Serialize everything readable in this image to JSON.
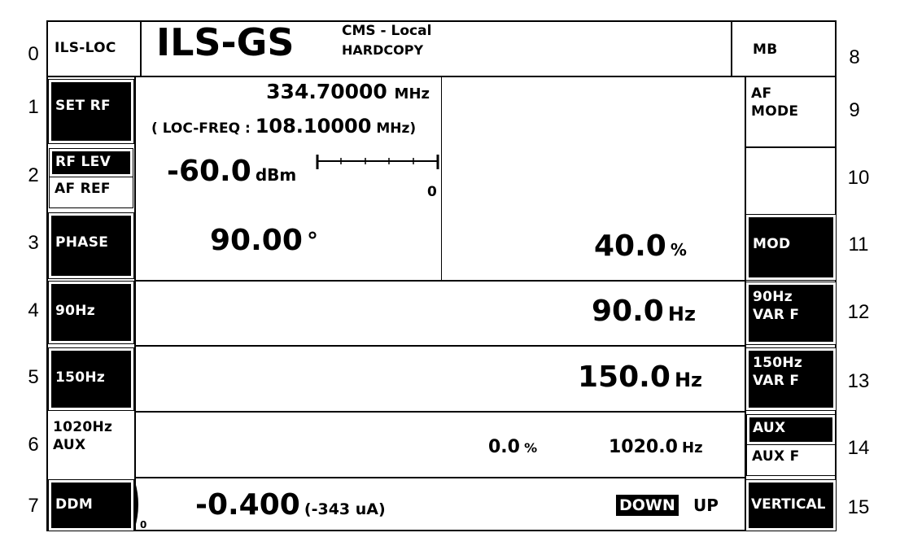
{
  "row_numbers_left": [
    "0",
    "1",
    "2",
    "3",
    "4",
    "5",
    "6",
    "7"
  ],
  "row_numbers_right": [
    "8",
    "9",
    "10",
    "11",
    "12",
    "13",
    "14",
    "15"
  ],
  "header": {
    "mode": "ILS-LOC",
    "title": "ILS-GS",
    "status_line1": "CMS - Local",
    "status_line2": "HARDCOPY",
    "right_key": "MB"
  },
  "left_keys": {
    "set_rf": "SET RF",
    "rf_lev": "RF LEV",
    "af_ref": "AF REF",
    "phase": "PHASE",
    "hz90": "90Hz",
    "hz150": "150Hz",
    "hz1020": "1020Hz",
    "aux": "AUX",
    "ddm": "DDM"
  },
  "right_keys": {
    "af_mode_1": "AF",
    "af_mode_2": "MODE",
    "mod": "MOD",
    "var90_1": "90Hz",
    "var90_2": "VAR F",
    "var150_1": "150Hz",
    "var150_2": "VAR F",
    "aux": "AUX",
    "aux_f": "AUX F",
    "vertical": "VERTICAL"
  },
  "rf": {
    "freq": "334.70000",
    "freq_unit": "MHz",
    "loc_freq_label": "( LOC-FREQ :",
    "loc_freq": "108.10000",
    "loc_freq_unit": "MHz)"
  },
  "level": {
    "value": "-60.0",
    "unit": "dBm",
    "scale_end": "0"
  },
  "phase": {
    "value": "90.00",
    "unit": "°"
  },
  "mod": {
    "value": "40.0",
    "unit": "%"
  },
  "f90": {
    "value": "90.0",
    "unit": "Hz"
  },
  "f150": {
    "value": "150.0",
    "unit": "Hz"
  },
  "f1020": {
    "depth": "0.0",
    "depth_unit": "%",
    "value": "1020.0",
    "unit": "Hz"
  },
  "ddm": {
    "value": "-0.400",
    "current": "(-343 uA)",
    "scale_zero": "0",
    "down": "DOWN",
    "up": "UP",
    "selected": "DOWN"
  }
}
